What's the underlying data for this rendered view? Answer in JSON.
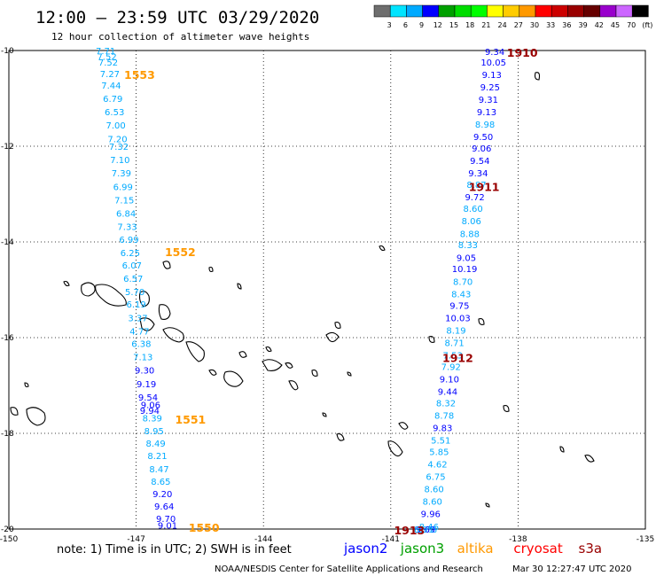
{
  "title": "12:00 – 23:59 UTC 03/29/2020",
  "subtitle": "12 hour collection of altimeter wave heights",
  "colorbar": {
    "labels": [
      "3",
      "6",
      "9",
      "12",
      "15",
      "18",
      "21",
      "24",
      "27",
      "30",
      "33",
      "36",
      "39",
      "42",
      "45",
      "70",
      "(ft)"
    ],
    "colors": [
      "#6e6e6e",
      "#00e4ff",
      "#00aaff",
      "#0000ff",
      "#00a000",
      "#00dd00",
      "#00ff00",
      "#ffff00",
      "#ffcc00",
      "#ff9900",
      "#ff0000",
      "#cc0000",
      "#990000",
      "#660000",
      "#9900cc",
      "#cc66ff",
      "#000000"
    ]
  },
  "note": "note:  1) Time is in UTC;  2) SWH is in feet",
  "satellites": [
    {
      "name": "jason2",
      "color": "#0000ff"
    },
    {
      "name": "jason3",
      "color": "#00a000"
    },
    {
      "name": "altika",
      "color": "#ff9900"
    },
    {
      "name": "cryosat",
      "color": "#ff0000"
    },
    {
      "name": "s3a",
      "color": "#990000"
    }
  ],
  "credit": "NOAA/NESDIS Center for Satellite Applications and Research",
  "timestamp": "Mar 30 12:27:47 UTC 2020",
  "chart_data": {
    "type": "scatter",
    "xlim": [
      -150,
      -135
    ],
    "ylim": [
      -20,
      -10
    ],
    "x_ticks": [
      "-150",
      "-147",
      "-144",
      "-141",
      "-138",
      "-135"
    ],
    "y_ticks": [
      "-10",
      "-12",
      "-14",
      "-16",
      "-18",
      "-20"
    ],
    "grid": true,
    "pass_labels": [
      {
        "text": "1553",
        "lon": -146.92,
        "lat": -10.5,
        "color": "#ff9900"
      },
      {
        "text": "1552",
        "lon": -145.96,
        "lat": -14.2,
        "color": "#ff9900"
      },
      {
        "text": "1551",
        "lon": -145.72,
        "lat": -17.7,
        "color": "#ff9900"
      },
      {
        "text": "1550",
        "lon": -145.4,
        "lat": -19.96,
        "color": "#ff9900"
      },
      {
        "text": "1910",
        "lon": -137.9,
        "lat": -10.04,
        "color": "#990000"
      },
      {
        "text": "1911",
        "lon": -138.8,
        "lat": -12.84,
        "color": "#990000"
      },
      {
        "text": "1912",
        "lon": -139.42,
        "lat": -16.42,
        "color": "#990000"
      },
      {
        "text": "1913",
        "lon": -140.56,
        "lat": -20.02,
        "color": "#990000"
      }
    ],
    "series": [
      {
        "name": "altika",
        "x": [
          -147.72,
          -147.69,
          -147.66,
          -147.62,
          -147.59,
          -147.55,
          -147.51,
          -147.48,
          -147.44,
          -147.41,
          -147.38,
          -147.35,
          -147.31,
          -147.28,
          -147.24,
          -147.21,
          -147.17,
          -147.14,
          -147.1,
          -147.07,
          -147.03,
          -147.0,
          -146.96,
          -146.92,
          -146.88,
          -146.84,
          -146.8,
          -146.76,
          -146.72,
          -146.68
        ],
        "y": [
          -10.0,
          -10.12,
          -10.24,
          -10.48,
          -10.72,
          -11.0,
          -11.28,
          -11.56,
          -11.84,
          -12.0,
          -12.28,
          -12.56,
          -12.84,
          -13.12,
          -13.4,
          -13.68,
          -13.94,
          -14.22,
          -14.48,
          -14.76,
          -15.04,
          -15.3,
          -15.58,
          -15.86,
          -16.12,
          -16.4,
          -16.68,
          -16.96,
          -17.24,
          -17.52
        ],
        "values": [
          7.71,
          7.52,
          7.52,
          7.27,
          7.44,
          6.79,
          6.53,
          7.0,
          7.2,
          7.32,
          7.1,
          7.39,
          6.99,
          7.15,
          6.84,
          7.33,
          6.99,
          6.25,
          6.07,
          6.57,
          5.7,
          6.19,
          3.37,
          4.77,
          6.38,
          7.13,
          9.3,
          9.19,
          9.54,
          9.94
        ]
      },
      {
        "name": "altika-south",
        "x": [
          -146.66,
          -146.62,
          -146.58,
          -146.54,
          -146.5,
          -146.46,
          -146.42,
          -146.38,
          -146.34,
          -146.3,
          -146.26,
          -146.22,
          -146.18,
          -146.14
        ],
        "y": [
          -17.4,
          -17.68,
          -17.94,
          -18.2,
          -18.46,
          -18.74,
          -19.0,
          -19.26,
          -19.52,
          -19.78,
          -19.92,
          -20.0,
          -20.0,
          -20.0
        ],
        "values": [
          9.06,
          8.39,
          8.95,
          8.49,
          8.21,
          8.47,
          8.65,
          9.2,
          9.64,
          9.7,
          9.01,
          null,
          null,
          null
        ]
      },
      {
        "name": "cryosat-s3a",
        "x": [
          -138.55,
          -138.58,
          -138.62,
          -138.66,
          -138.7,
          -138.74,
          -138.78,
          -138.82,
          -138.86,
          -138.9,
          -138.94,
          -138.98,
          -139.02,
          -139.06,
          -139.1,
          -139.14,
          -139.18,
          -139.22,
          -139.26,
          -139.3,
          -139.34,
          -139.38,
          -139.42,
          -139.46,
          -139.5,
          -139.54,
          -139.58,
          -139.62,
          -139.66,
          -139.7,
          -139.74,
          -139.78,
          -139.82,
          -139.86,
          -139.9,
          -139.94,
          -139.98,
          -140.02,
          -140.06,
          -140.1,
          -140.14,
          -140.18,
          -140.22,
          -140.26,
          -140.3,
          -140.34,
          -140.38,
          -140.42,
          -140.46,
          -140.5,
          -140.54
        ],
        "y": [
          -10.02,
          -10.24,
          -10.5,
          -10.76,
          -11.02,
          -11.28,
          -11.54,
          -11.8,
          -12.04,
          -12.3,
          -12.56,
          -12.8,
          -13.06,
          -13.3,
          -13.56,
          -13.82,
          -14.06,
          -14.32,
          -14.56,
          -14.82,
          -15.08,
          -15.32,
          -15.58,
          -15.84,
          -16.1,
          -16.36,
          -16.6,
          -16.86,
          -17.12,
          -17.36,
          -17.62,
          -17.88,
          -18.14,
          -18.38,
          -18.64,
          -18.9,
          -19.16,
          -19.42,
          -19.68,
          -19.94,
          -20.0,
          -20.0,
          -20.0,
          -20.0,
          -20.0,
          -20.0,
          -20.0,
          -20.0,
          -20.0,
          -20.0,
          -20.0
        ],
        "values": [
          9.34,
          10.05,
          9.13,
          9.25,
          9.31,
          9.13,
          8.98,
          9.5,
          9.06,
          9.54,
          9.34,
          8.87,
          9.72,
          8.6,
          8.06,
          8.88,
          8.33,
          9.05,
          10.19,
          8.7,
          8.43,
          9.75,
          10.03,
          8.19,
          8.71,
          7.53,
          7.92,
          9.1,
          9.44,
          8.32,
          8.78,
          9.83,
          5.51,
          5.85,
          4.62,
          6.75,
          8.6,
          8.6,
          9.96,
          8.46,
          8.78,
          9.69,
          8.91,
          null,
          null,
          null,
          null,
          null,
          null,
          null,
          null
        ]
      }
    ]
  }
}
